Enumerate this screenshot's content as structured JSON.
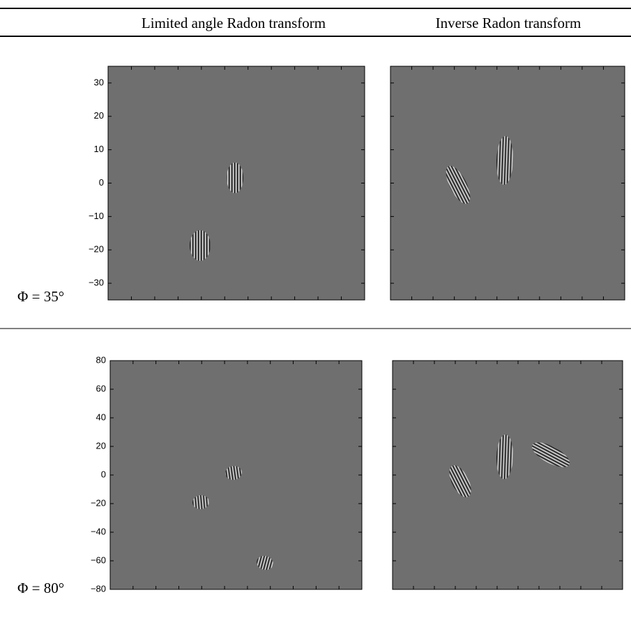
{
  "header": {
    "columns": [
      "Limited angle Radon transform",
      "Inverse Radon transform"
    ]
  },
  "rows": [
    {
      "label": "Φ = 35°",
      "ylim": [
        -35,
        35
      ],
      "yticks": [
        30,
        20,
        10,
        0,
        {
          "value": -10,
          "label": "−10"
        },
        {
          "value": -20,
          "label": "−20"
        },
        {
          "value": -30,
          "label": "−30"
        }
      ]
    },
    {
      "label": "Φ = 80°",
      "ylim": [
        -80,
        80
      ],
      "yticks": [
        80,
        60,
        40,
        20,
        0,
        {
          "value": -20,
          "label": "−20"
        },
        {
          "value": -40,
          "label": "−40"
        },
        {
          "value": -60,
          "label": "−60"
        },
        {
          "value": -80,
          "label": "−80"
        }
      ]
    }
  ]
}
